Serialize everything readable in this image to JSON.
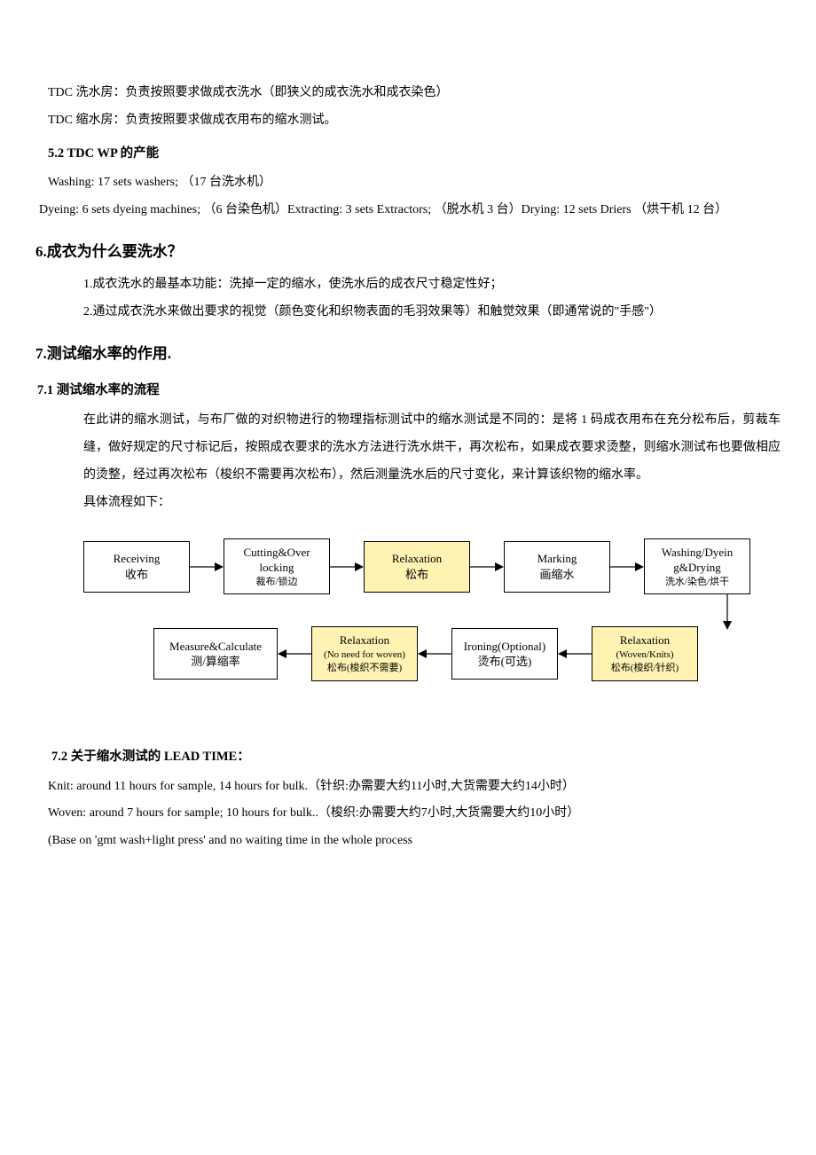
{
  "p1": "TDC 洗水房：负责按照要求做成衣洗水（即狭义的成衣洗水和成衣染色）",
  "p2": "TDC 缩水房：负责按照要求做成衣用布的缩水测试。",
  "h52": "5.2 TDC WP 的产能",
  "cap1": "Washing: 17 sets washers;  （17 台洗水机）",
  "cap2": "Dyeing: 6 sets dyeing machines; （6 台染色机）Extracting: 3 sets Extractors; （脱水机 3 台）Drying: 12 sets Driers （烘干机 12 台）",
  "h6": "6.成衣为什么要洗水？",
  "s6_1": "1.成衣洗水的最基本功能：洗掉一定的缩水，使洗水后的成衣尺寸稳定性好；",
  "s6_2": "2.通过成衣洗水来做出要求的视觉（颜色变化和织物表面的毛羽效果等）和触觉效果（即通常说的\"手感\"）",
  "h7": "7.测试缩水率的作用.",
  "h71": "7.1 测试缩水率的流程",
  "p71": "在此讲的缩水测试，与布厂做的对织物进行的物理指标测试中的缩水测试是不同的：是将 1 码成衣用布在充分松布后，剪裁车缝，做好规定的尺寸标记后，按照成衣要求的洗水方法进行洗水烘干，再次松布，如果成衣要求烫整，则缩水测试布也要做相应的烫整，经过再次松布（梭织不需要再次松布），然后测量洗水后的尺寸变化，来计算该织物的缩水率。",
  "p71b": "具体流程如下：",
  "flow": {
    "box_border": "#000000",
    "highlight_bg": "#fff2b3",
    "arrow_color": "#000000",
    "top": [
      {
        "l1": "Receiving",
        "l2": "收布",
        "hl": false
      },
      {
        "l1": "Cutting&Over locking",
        "l2": "裁布/锁边",
        "hl": false,
        "sub2": true
      },
      {
        "l1": "Relaxation",
        "l2": "松布",
        "hl": true
      },
      {
        "l1": "Marking",
        "l2": "画缩水",
        "hl": false
      },
      {
        "l1": "Washing/Dyein g&Drying",
        "l2": "洗水/染色/烘干",
        "hl": false,
        "sub2": true
      }
    ],
    "bottom": [
      {
        "l1": "Measure&Calculate",
        "l2": "测/算缩率",
        "hl": false
      },
      {
        "l1": "Relaxation",
        "l2": "(No need for woven)",
        "l3": "松布(梭织不需要)",
        "hl": true,
        "small": true
      },
      {
        "l1": "Ironing(Optional)",
        "l2": "烫布(可选)",
        "hl": false
      },
      {
        "l1": "Relaxation",
        "l2": "(Woven/Knits)",
        "l3": "松布(梭织/针织)",
        "hl": true,
        "small": true
      }
    ]
  },
  "h72": "7.2 关于缩水测试的 LEAD TIME：",
  "lt1": "Knit: around 11 hours for sample, 14 hours for bulk.（针织:办需要大约11小时,大货需要大约14小时）",
  "lt2": "Woven: around 7 hours for sample; 10 hours for bulk..（梭织:办需要大约7小时,大货需要大约10小时）",
  "lt3": "(Base on 'gmt wash+light press' and no waiting time in the whole process"
}
